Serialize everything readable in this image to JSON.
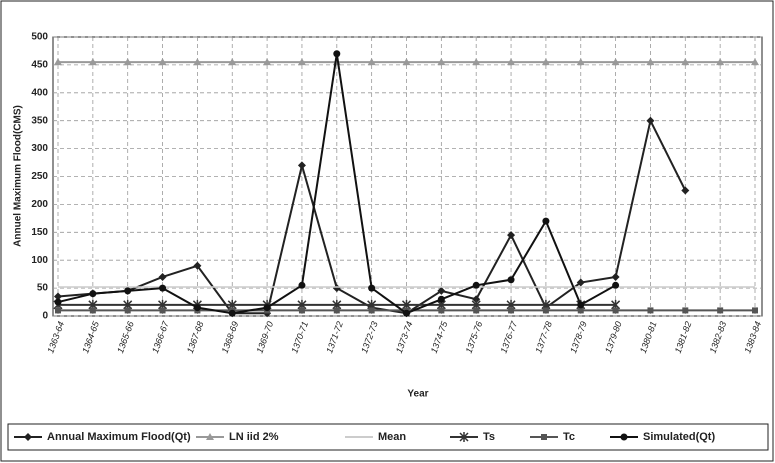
{
  "chart_data": {
    "type": "line",
    "y_label": "Annuel Maximum Flood(CMS)",
    "x_label": "Year",
    "categories": [
      "1363-64",
      "1364-65",
      "1365-66",
      "1366-67",
      "1367-68",
      "1368-69",
      "1369-70",
      "1370-71",
      "1371-72",
      "1372-73",
      "1373-74",
      "1374-75",
      "1375-76",
      "1376-77",
      "1377-78",
      "1378-79",
      "1379-80",
      "1380-81",
      "1381-82",
      "1382-83",
      "1383-84"
    ],
    "ylim": [
      0,
      500
    ],
    "yticks": [
      0,
      50,
      100,
      150,
      200,
      250,
      300,
      350,
      400,
      450,
      500
    ],
    "grid": true,
    "legend": "bottom",
    "series": [
      {
        "name": "Annual Maximum Flood(Qt)",
        "color": "#222222",
        "marker": "diamond",
        "values": [
          35,
          40,
          45,
          70,
          90,
          5,
          5,
          270,
          50,
          15,
          5,
          45,
          30,
          145,
          15,
          60,
          70,
          350,
          225,
          null,
          null
        ]
      },
      {
        "name": "LN iid 2%",
        "color": "#999999",
        "marker": "triangle",
        "values": [
          455,
          455,
          455,
          455,
          455,
          455,
          455,
          455,
          455,
          455,
          455,
          455,
          455,
          455,
          455,
          455,
          455,
          455,
          455,
          455,
          455
        ]
      },
      {
        "name": "Mean",
        "color": "#cccccc",
        "marker": "none",
        "values": [
          52,
          52,
          52,
          52,
          52,
          52,
          52,
          52,
          52,
          52,
          52,
          52,
          52,
          52,
          52,
          52,
          52,
          52,
          52,
          52,
          52
        ]
      },
      {
        "name": "Ts",
        "color": "#333333",
        "marker": "asterisk",
        "values": [
          20,
          20,
          20,
          20,
          20,
          20,
          20,
          20,
          20,
          20,
          20,
          20,
          20,
          20,
          20,
          20,
          20,
          null,
          null,
          null,
          null
        ]
      },
      {
        "name": "Tc",
        "color": "#555555",
        "marker": "square",
        "values": [
          10,
          10,
          10,
          10,
          10,
          10,
          10,
          10,
          10,
          10,
          10,
          10,
          10,
          10,
          10,
          10,
          10,
          10,
          10,
          10,
          10
        ]
      },
      {
        "name": "Simulated(Qt)",
        "color": "#111111",
        "marker": "circle",
        "values": [
          25,
          40,
          45,
          50,
          15,
          5,
          15,
          55,
          470,
          50,
          5,
          30,
          55,
          65,
          170,
          20,
          55,
          null,
          null,
          null,
          null
        ]
      }
    ]
  }
}
